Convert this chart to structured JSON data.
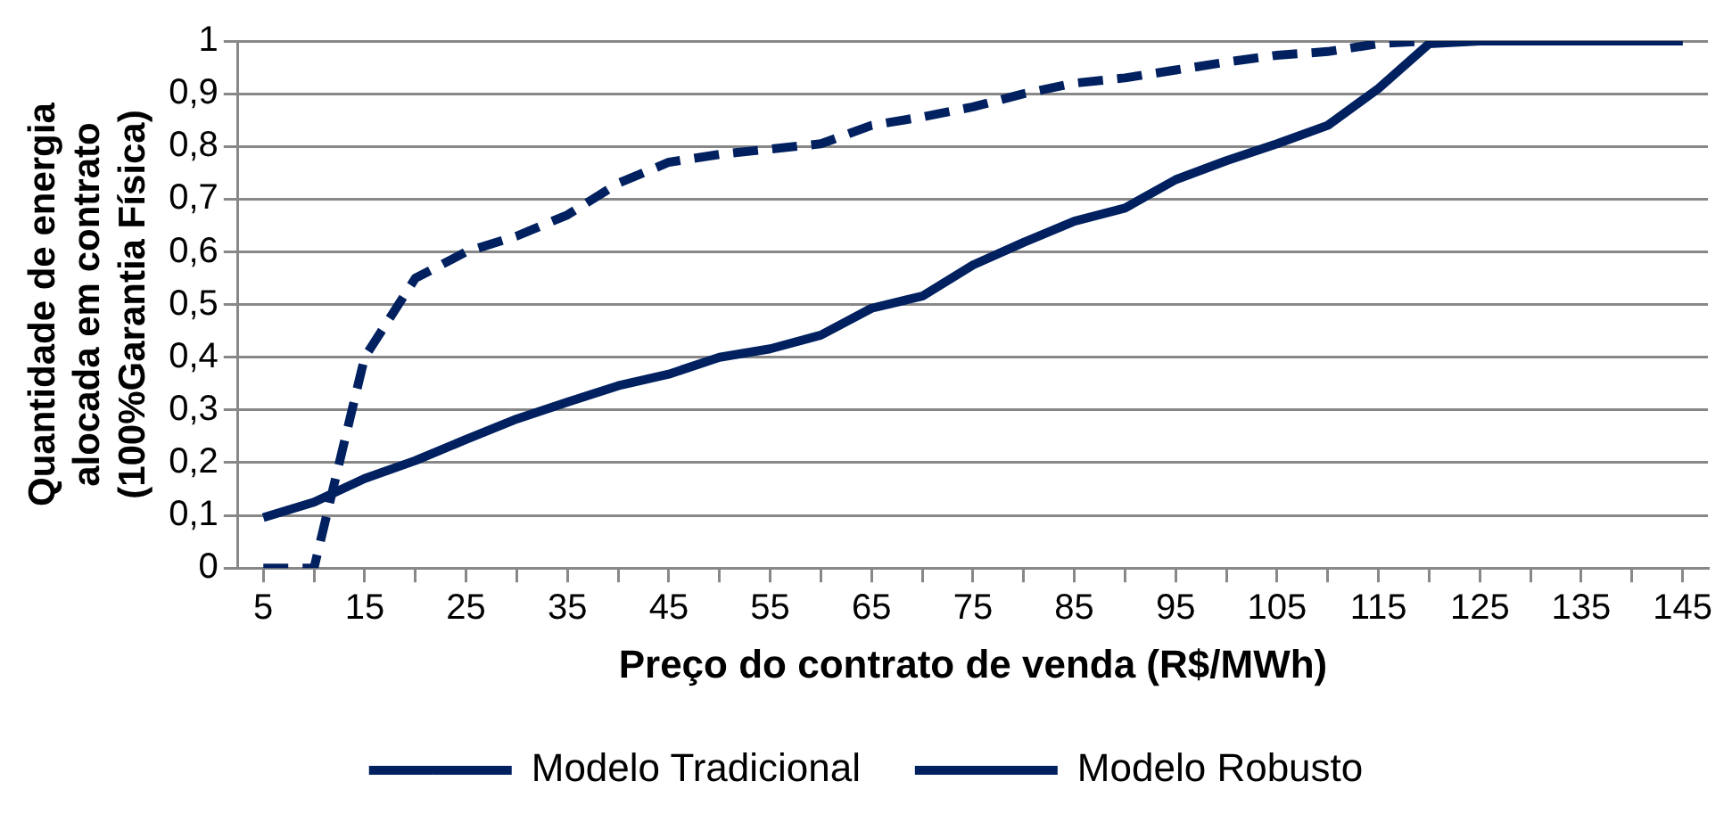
{
  "chart_data": {
    "type": "line",
    "xlabel": "Preço do contrato de venda (R$/MWh)",
    "ylabel": "Quantidade de energia alocada em contrato (100%Garantia Física)",
    "categories": [
      "5",
      null,
      "15",
      null,
      "25",
      null,
      "35",
      null,
      "45",
      null,
      "55",
      null,
      "65",
      null,
      "75",
      null,
      "85",
      null,
      "95",
      null,
      "105",
      null,
      "115",
      null,
      "125",
      null,
      "135",
      null,
      "145"
    ],
    "series": [
      {
        "name": "Modelo Tradicional",
        "color": "#002060",
        "line_style": "dashed",
        "values": [
          0,
          0,
          0.4,
          0.55,
          0.6,
          0.63,
          0.67,
          0.73,
          0.77,
          0.785,
          0.795,
          0.805,
          0.84,
          0.856,
          0.875,
          0.9,
          0.92,
          0.93,
          0.945,
          0.96,
          0.973,
          0.98,
          0.995,
          1,
          1,
          1,
          1,
          1,
          1
        ]
      },
      {
        "name": "Modelo Robusto",
        "color": "#002060",
        "line_style": "solid",
        "values": [
          0.096,
          0.125,
          0.17,
          0.204,
          0.244,
          0.283,
          0.315,
          0.346,
          0.368,
          0.4,
          0.416,
          0.442,
          0.493,
          0.516,
          0.575,
          0.618,
          0.658,
          0.683,
          0.737,
          0.773,
          0.805,
          0.84,
          0.91,
          0.995,
          1,
          1,
          1,
          1,
          1
        ]
      }
    ],
    "ylim": [
      0,
      1
    ],
    "yticks": [
      0,
      {
        "value": 0.1,
        "label": "0,1"
      },
      {
        "value": 0.2,
        "label": "0,2"
      },
      {
        "value": 0.3,
        "label": "0,3"
      },
      {
        "value": 0.4,
        "label": "0,4"
      },
      {
        "value": 0.5,
        "label": "0,5"
      },
      {
        "value": 0.6,
        "label": "0,6"
      },
      {
        "value": 0.7,
        "label": "0,7"
      },
      {
        "value": 0.8,
        "label": "0,8"
      },
      {
        "value": 0.9,
        "label": "0,9"
      },
      1
    ],
    "grid": "y",
    "legend": "bottom",
    "marker": "none"
  }
}
